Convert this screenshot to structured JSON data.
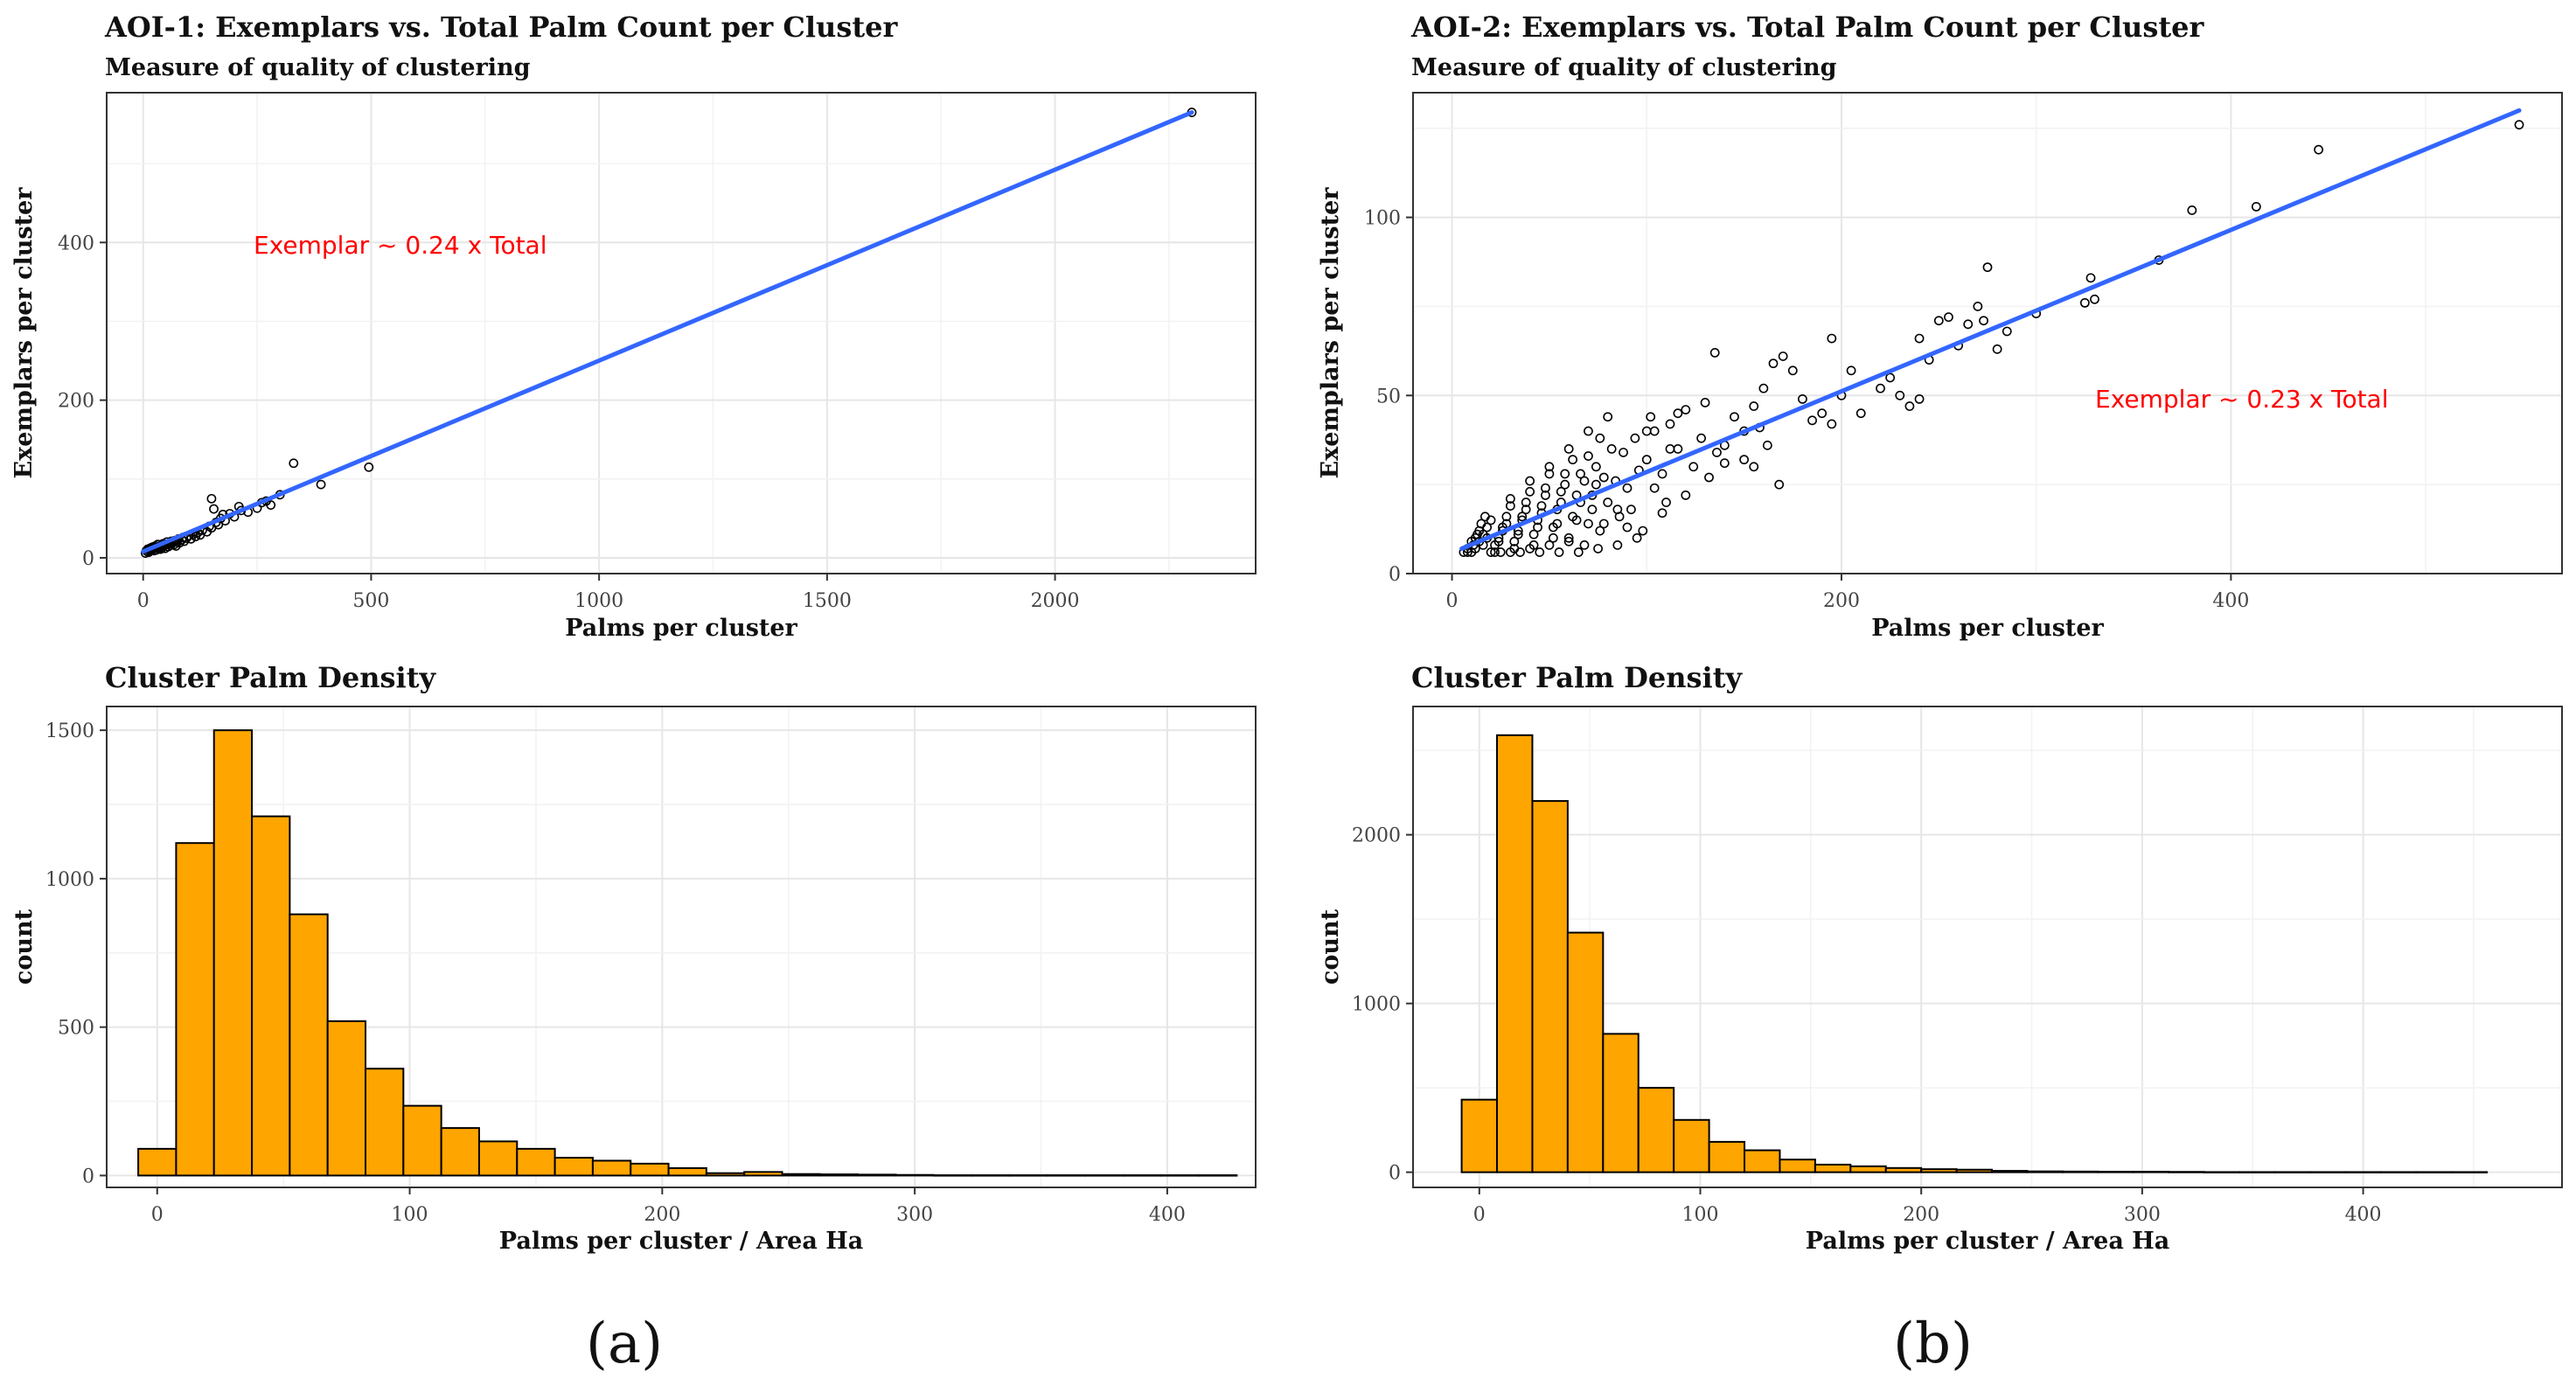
{
  "figure": {
    "caption_a": "(a)",
    "caption_b": "(b)"
  },
  "chart_data": [
    {
      "type": "scatter",
      "title": "AOI-1: Exemplars vs. Total Palm Count per Cluster",
      "subtitle": "Measure of quality of clustering",
      "xlabel": "Palms per cluster",
      "ylabel": "Exemplars per cluster",
      "xlim": [
        -80,
        2440
      ],
      "ylim": [
        -20,
        590
      ],
      "x_ticks": [
        0,
        500,
        1000,
        1500,
        2000
      ],
      "y_ticks": [
        0,
        200,
        400
      ],
      "grid": true,
      "annotation": "Exemplar ~ 0.24 x Total",
      "annotation_color": "#ff0000",
      "fit_line": {
        "x": [
          0,
          2300
        ],
        "y": [
          8,
          565
        ],
        "color": "#3366ff"
      },
      "points": [
        [
          5,
          6
        ],
        [
          7,
          9
        ],
        [
          9,
          8
        ],
        [
          10,
          11
        ],
        [
          12,
          7
        ],
        [
          14,
          10
        ],
        [
          15,
          12
        ],
        [
          17,
          9
        ],
        [
          18,
          13
        ],
        [
          20,
          11
        ],
        [
          22,
          14
        ],
        [
          24,
          9
        ],
        [
          25,
          12
        ],
        [
          27,
          15
        ],
        [
          29,
          10
        ],
        [
          30,
          13
        ],
        [
          32,
          17
        ],
        [
          34,
          12
        ],
        [
          36,
          14
        ],
        [
          38,
          11
        ],
        [
          40,
          16
        ],
        [
          42,
          13
        ],
        [
          44,
          18
        ],
        [
          46,
          15
        ],
        [
          48,
          12
        ],
        [
          50,
          17
        ],
        [
          52,
          20
        ],
        [
          55,
          14
        ],
        [
          58,
          18
        ],
        [
          60,
          16
        ],
        [
          62,
          21
        ],
        [
          65,
          19
        ],
        [
          68,
          17
        ],
        [
          70,
          22
        ],
        [
          72,
          15
        ],
        [
          75,
          20
        ],
        [
          78,
          24
        ],
        [
          80,
          19
        ],
        [
          85,
          23
        ],
        [
          88,
          26
        ],
        [
          90,
          21
        ],
        [
          95,
          25
        ],
        [
          100,
          28
        ],
        [
          105,
          24
        ],
        [
          110,
          30
        ],
        [
          115,
          27
        ],
        [
          120,
          32
        ],
        [
          125,
          29
        ],
        [
          130,
          35
        ],
        [
          140,
          33
        ],
        [
          145,
          40
        ],
        [
          150,
          38
        ],
        [
          160,
          45
        ],
        [
          165,
          42
        ],
        [
          170,
          50
        ],
        [
          180,
          47
        ],
        [
          190,
          56
        ],
        [
          200,
          52
        ],
        [
          230,
          58
        ],
        [
          250,
          63
        ],
        [
          270,
          72
        ],
        [
          280,
          67
        ],
        [
          300,
          80
        ],
        [
          330,
          120
        ],
        [
          390,
          93
        ],
        [
          495,
          115
        ],
        [
          2300,
          565
        ],
        [
          150,
          75
        ],
        [
          155,
          62
        ],
        [
          175,
          55
        ],
        [
          210,
          65
        ],
        [
          215,
          60
        ],
        [
          260,
          70
        ]
      ]
    },
    {
      "type": "scatter",
      "title": "AOI-2: Exemplars vs. Total Palm Count per Cluster",
      "subtitle": "Measure of quality of clustering",
      "xlabel": "Palms per cluster",
      "ylabel": "Exemplars per cluster",
      "xlim": [
        -20,
        570
      ],
      "ylim": [
        0,
        135
      ],
      "x_ticks": [
        0,
        200,
        400
      ],
      "y_ticks": [
        0,
        50,
        100
      ],
      "grid": true,
      "annotation": "Exemplar ~ 0.23 x Total",
      "annotation_color": "#ff0000",
      "fit_line": {
        "x": [
          5,
          548
        ],
        "y": [
          7,
          130
        ],
        "color": "#3366ff"
      },
      "points": [
        [
          380,
          102
        ],
        [
          413,
          103
        ],
        [
          445,
          119
        ],
        [
          548,
          126
        ],
        [
          363,
          88
        ],
        [
          270,
          75
        ],
        [
          275,
          86
        ],
        [
          280,
          63
        ],
        [
          285,
          68
        ],
        [
          300,
          73
        ],
        [
          325,
          76
        ],
        [
          328,
          83
        ],
        [
          330,
          77
        ],
        [
          240,
          66
        ],
        [
          245,
          60
        ],
        [
          250,
          71
        ],
        [
          255,
          72
        ],
        [
          260,
          64
        ],
        [
          265,
          70
        ],
        [
          273,
          71
        ],
        [
          200,
          50
        ],
        [
          205,
          57
        ],
        [
          210,
          45
        ],
        [
          220,
          52
        ],
        [
          225,
          55
        ],
        [
          230,
          50
        ],
        [
          235,
          47
        ],
        [
          240,
          49
        ],
        [
          150,
          40
        ],
        [
          155,
          47
        ],
        [
          160,
          52
        ],
        [
          165,
          59
        ],
        [
          170,
          61
        ],
        [
          175,
          57
        ],
        [
          180,
          49
        ],
        [
          185,
          43
        ],
        [
          190,
          45
        ],
        [
          195,
          42
        ],
        [
          195,
          66
        ],
        [
          130,
          48
        ],
        [
          135,
          62
        ],
        [
          140,
          36
        ],
        [
          145,
          44
        ],
        [
          150,
          32
        ],
        [
          155,
          30
        ],
        [
          158,
          41
        ],
        [
          162,
          36
        ],
        [
          168,
          25
        ],
        [
          100,
          32
        ],
        [
          104,
          40
        ],
        [
          108,
          28
        ],
        [
          112,
          35
        ],
        [
          116,
          45
        ],
        [
          120,
          22
        ],
        [
          124,
          30
        ],
        [
          128,
          38
        ],
        [
          132,
          27
        ],
        [
          136,
          34
        ],
        [
          140,
          31
        ],
        [
          80,
          20
        ],
        [
          84,
          26
        ],
        [
          88,
          34
        ],
        [
          92,
          18
        ],
        [
          96,
          29
        ],
        [
          100,
          40
        ],
        [
          104,
          24
        ],
        [
          108,
          17
        ],
        [
          112,
          42
        ],
        [
          116,
          35
        ],
        [
          120,
          46
        ],
        [
          70,
          14
        ],
        [
          72,
          22
        ],
        [
          74,
          30
        ],
        [
          76,
          12
        ],
        [
          78,
          27
        ],
        [
          82,
          35
        ],
        [
          86,
          16
        ],
        [
          90,
          24
        ],
        [
          94,
          38
        ],
        [
          98,
          12
        ],
        [
          102,
          44
        ],
        [
          60,
          10
        ],
        [
          62,
          16
        ],
        [
          64,
          22
        ],
        [
          66,
          28
        ],
        [
          68,
          8
        ],
        [
          70,
          33
        ],
        [
          72,
          18
        ],
        [
          74,
          25
        ],
        [
          76,
          38
        ],
        [
          78,
          14
        ],
        [
          80,
          44
        ],
        [
          50,
          8
        ],
        [
          52,
          13
        ],
        [
          54,
          18
        ],
        [
          56,
          23
        ],
        [
          58,
          28
        ],
        [
          60,
          9
        ],
        [
          62,
          32
        ],
        [
          64,
          15
        ],
        [
          66,
          20
        ],
        [
          68,
          26
        ],
        [
          70,
          40
        ],
        [
          40,
          7
        ],
        [
          42,
          11
        ],
        [
          44,
          15
        ],
        [
          46,
          19
        ],
        [
          48,
          24
        ],
        [
          50,
          28
        ],
        [
          52,
          10
        ],
        [
          54,
          14
        ],
        [
          56,
          20
        ],
        [
          58,
          25
        ],
        [
          60,
          35
        ],
        [
          30,
          6
        ],
        [
          32,
          9
        ],
        [
          34,
          12
        ],
        [
          36,
          16
        ],
        [
          38,
          20
        ],
        [
          40,
          23
        ],
        [
          42,
          8
        ],
        [
          44,
          13
        ],
        [
          46,
          17
        ],
        [
          48,
          22
        ],
        [
          50,
          30
        ],
        [
          20,
          6
        ],
        [
          22,
          8
        ],
        [
          24,
          10
        ],
        [
          26,
          13
        ],
        [
          28,
          16
        ],
        [
          30,
          19
        ],
        [
          32,
          7
        ],
        [
          34,
          11
        ],
        [
          36,
          15
        ],
        [
          38,
          18
        ],
        [
          40,
          26
        ],
        [
          10,
          6
        ],
        [
          12,
          7
        ],
        [
          14,
          9
        ],
        [
          16,
          11
        ],
        [
          18,
          13
        ],
        [
          20,
          15
        ],
        [
          22,
          6
        ],
        [
          24,
          9
        ],
        [
          26,
          12
        ],
        [
          28,
          14
        ],
        [
          30,
          21
        ],
        [
          6,
          6
        ],
        [
          8,
          7
        ],
        [
          10,
          9
        ],
        [
          12,
          10
        ],
        [
          14,
          12
        ],
        [
          16,
          8
        ],
        [
          18,
          10
        ],
        [
          8,
          6
        ],
        [
          11,
          8
        ],
        [
          13,
          11
        ],
        [
          15,
          14
        ],
        [
          17,
          16
        ],
        [
          45,
          6
        ],
        [
          55,
          6
        ],
        [
          65,
          6
        ],
        [
          75,
          7
        ],
        [
          85,
          8
        ],
        [
          35,
          6
        ],
        [
          25,
          6
        ],
        [
          95,
          10
        ],
        [
          90,
          13
        ],
        [
          85,
          18
        ],
        [
          110,
          20
        ]
      ]
    },
    {
      "type": "bar",
      "title": "Cluster Palm Density",
      "xlabel": "Palms per cluster / Area Ha",
      "ylabel": "count",
      "xlim": [
        -20,
        435
      ],
      "ylim": [
        -40,
        1580
      ],
      "x_ticks": [
        0,
        100,
        200,
        300,
        400
      ],
      "y_ticks": [
        0,
        500,
        1000,
        1500
      ],
      "grid": true,
      "bar_color": "#ffa500",
      "bin_start": -7.5,
      "bin_width": 15,
      "values": [
        90,
        1120,
        1500,
        1210,
        880,
        520,
        360,
        235,
        160,
        115,
        90,
        60,
        50,
        40,
        25,
        8,
        12,
        5,
        4,
        3,
        2,
        1,
        1,
        1,
        1,
        1,
        1,
        1,
        1
      ]
    },
    {
      "type": "bar",
      "title": "Cluster Palm Density",
      "xlabel": "Palms per cluster / Area Ha",
      "ylabel": "count",
      "xlim": [
        -30,
        490
      ],
      "ylim": [
        -90,
        2760
      ],
      "x_ticks": [
        0,
        100,
        200,
        300,
        400
      ],
      "y_ticks": [
        0,
        1000,
        2000
      ],
      "grid": true,
      "bar_color": "#ffa500",
      "bin_start": -8,
      "bin_width": 16,
      "values": [
        430,
        2590,
        2200,
        1420,
        820,
        500,
        310,
        180,
        130,
        75,
        45,
        35,
        25,
        18,
        15,
        8,
        5,
        4,
        3,
        3,
        2,
        1,
        1,
        1,
        1,
        1,
        1,
        1,
        1
      ]
    }
  ]
}
